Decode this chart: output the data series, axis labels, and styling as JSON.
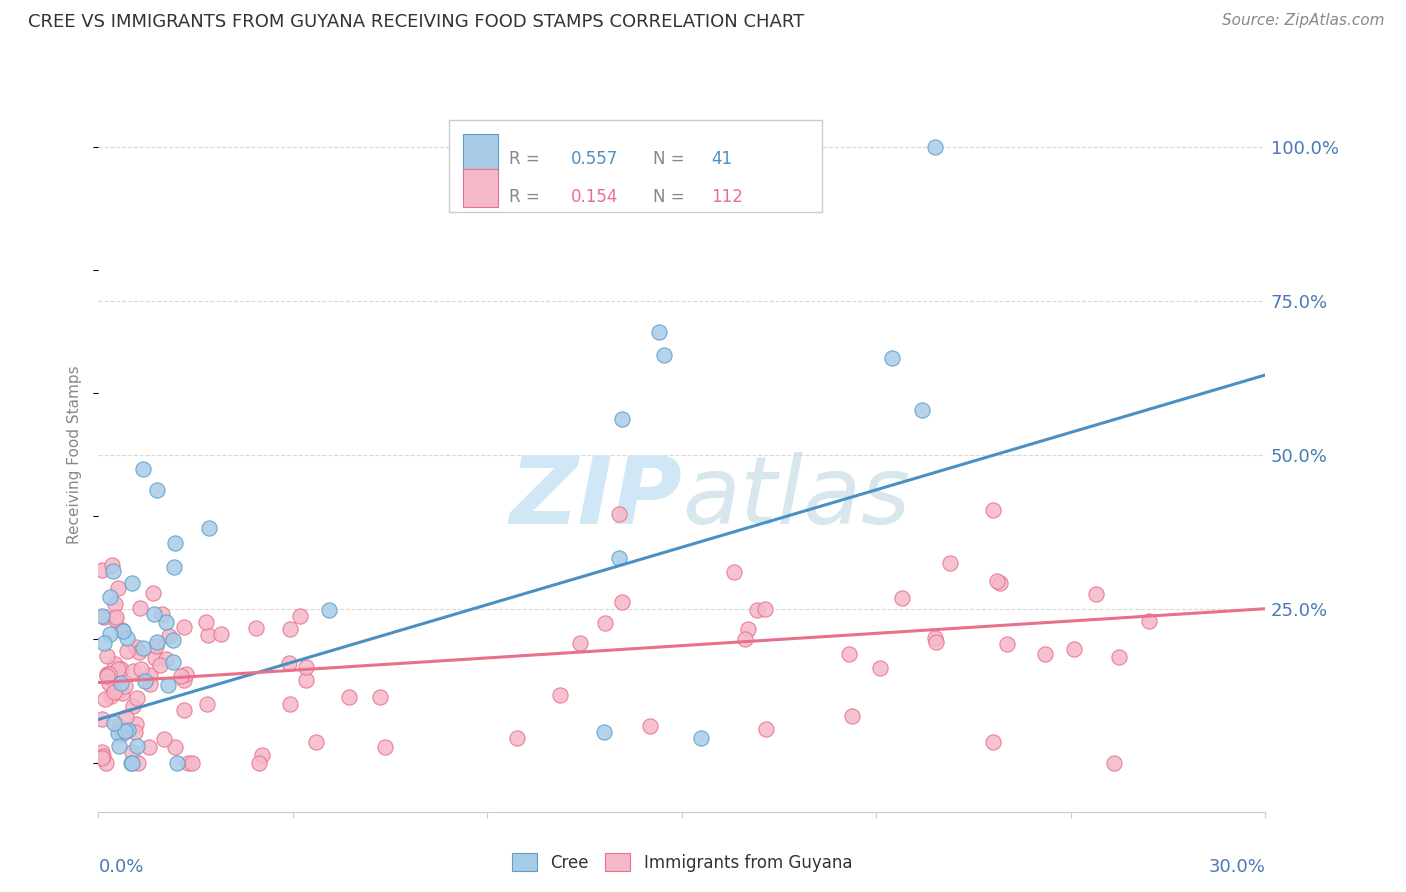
{
  "title": "CREE VS IMMIGRANTS FROM GUYANA RECEIVING FOOD STAMPS CORRELATION CHART",
  "source": "Source: ZipAtlas.com",
  "ylabel": "Receiving Food Stamps",
  "right_ytick_labels": [
    "100.0%",
    "75.0%",
    "50.0%",
    "25.0%"
  ],
  "right_ytick_values": [
    1.0,
    0.75,
    0.5,
    0.25
  ],
  "xlim": [
    0.0,
    0.3
  ],
  "ylim": [
    -0.08,
    1.08
  ],
  "legend_blue_r": "0.557",
  "legend_blue_n": "41",
  "legend_pink_r": "0.154",
  "legend_pink_n": "112",
  "blue_color": "#a8cce8",
  "pink_color": "#f5b8c8",
  "blue_edge_color": "#5a9ec9",
  "pink_edge_color": "#e8708a",
  "blue_line_color": "#4a90c4",
  "pink_line_color": "#e8708a",
  "label_color": "#4a7ab5",
  "watermark_color": "#d0e8f5",
  "grid_color": "#d8d8d8"
}
